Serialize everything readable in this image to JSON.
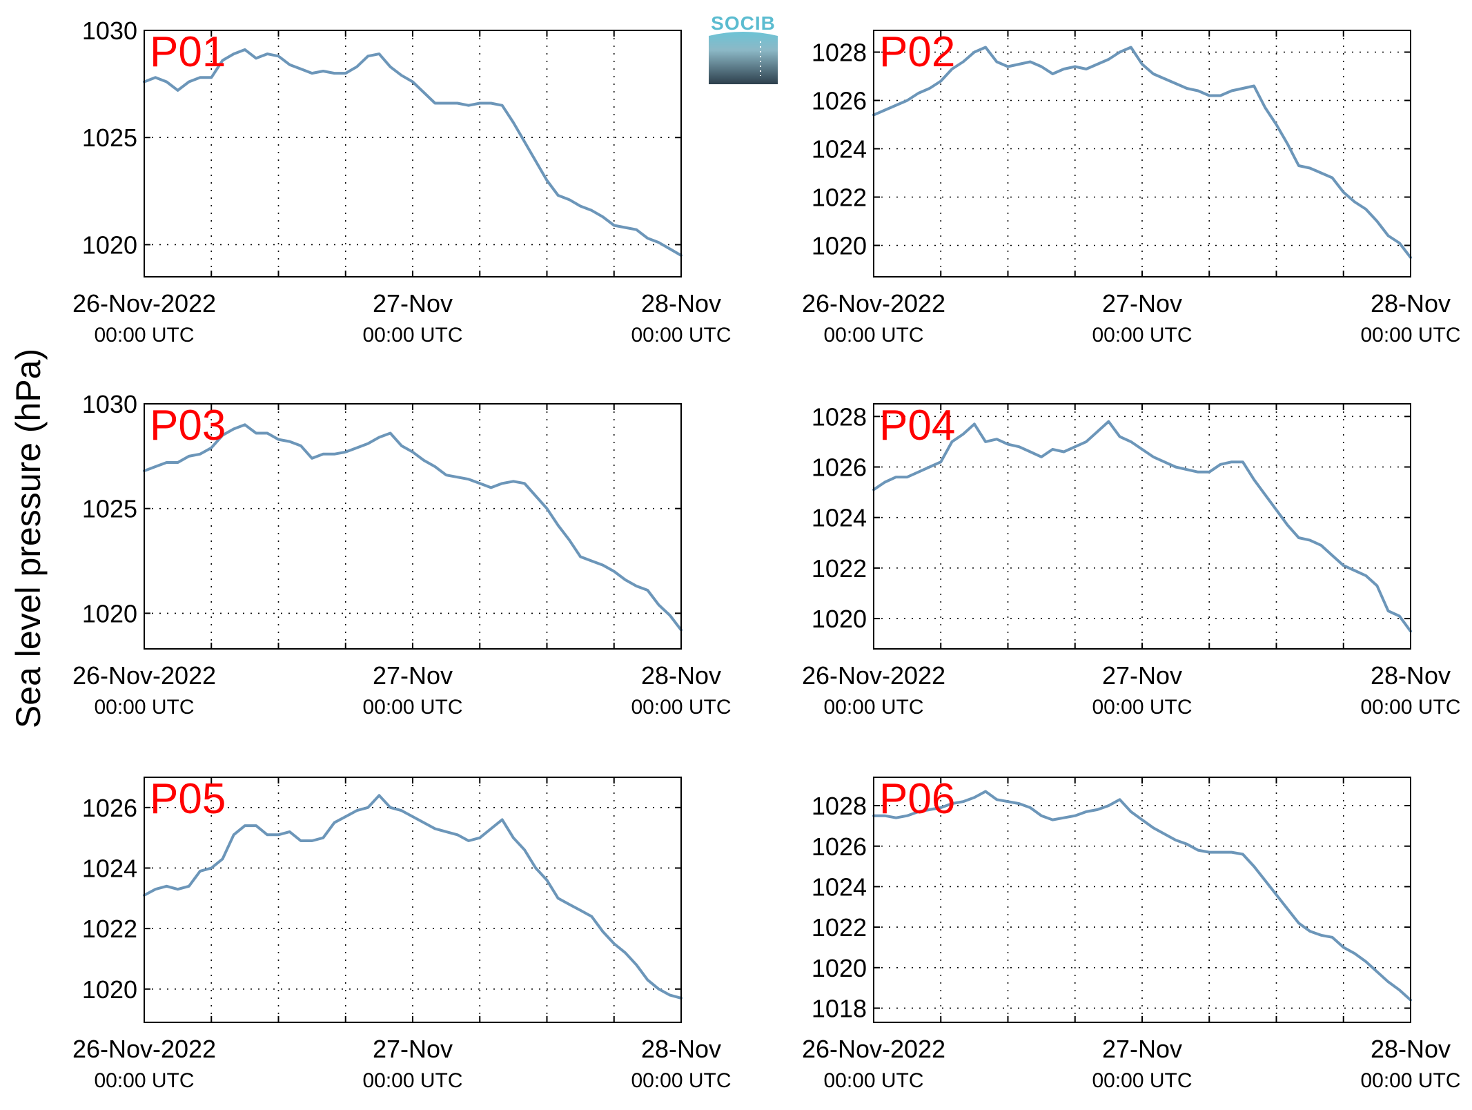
{
  "figure": {
    "ylabel": "Sea level pressure (hPa)",
    "logo_text": "SOCIB",
    "line_color": "#6c96b9",
    "station_label_color": "#ff0000"
  },
  "chart_data": [
    {
      "type": "line",
      "label": "P01",
      "ylim": [
        1018.5,
        1030.0
      ],
      "yticks": [
        1020,
        1025,
        1030
      ],
      "xlim": [
        0,
        48
      ],
      "xticks": [
        0,
        24,
        48
      ],
      "xticklabels": [
        [
          "26-Nov-2022",
          "00:00 UTC"
        ],
        [
          "27-Nov",
          "00:00 UTC"
        ],
        [
          "28-Nov",
          "00:00 UTC"
        ]
      ],
      "grid": true,
      "x": [
        0,
        1,
        2,
        3,
        4,
        5,
        6,
        7,
        8,
        9,
        10,
        11,
        12,
        13,
        14,
        15,
        16,
        17,
        18,
        19,
        20,
        21,
        22,
        23,
        24,
        25,
        26,
        27,
        28,
        29,
        30,
        31,
        32,
        33,
        34,
        35,
        36,
        37,
        38,
        39,
        40,
        41,
        42,
        43,
        44,
        45,
        46,
        47,
        48
      ],
      "y": [
        1027.6,
        1027.8,
        1027.6,
        1027.2,
        1027.6,
        1027.8,
        1027.8,
        1028.6,
        1028.9,
        1029.1,
        1028.7,
        1028.9,
        1028.8,
        1028.4,
        1028.2,
        1028.0,
        1028.1,
        1028.0,
        1028.0,
        1028.3,
        1028.8,
        1028.9,
        1028.3,
        1027.9,
        1027.6,
        1027.1,
        1026.6,
        1026.6,
        1026.6,
        1026.5,
        1026.6,
        1026.6,
        1026.5,
        1025.7,
        1024.8,
        1023.9,
        1023.0,
        1022.3,
        1022.1,
        1021.8,
        1021.6,
        1021.3,
        1020.9,
        1020.8,
        1020.7,
        1020.3,
        1020.1,
        1019.8,
        1019.5
      ]
    },
    {
      "type": "line",
      "label": "P02",
      "ylim": [
        1018.7,
        1028.9
      ],
      "yticks": [
        1020,
        1022,
        1024,
        1026,
        1028
      ],
      "xlim": [
        0,
        48
      ],
      "xticks": [
        0,
        24,
        48
      ],
      "xticklabels": [
        [
          "26-Nov-2022",
          "00:00 UTC"
        ],
        [
          "27-Nov",
          "00:00 UTC"
        ],
        [
          "28-Nov",
          "00:00 UTC"
        ]
      ],
      "grid": true,
      "x": [
        0,
        1,
        2,
        3,
        4,
        5,
        6,
        7,
        8,
        9,
        10,
        11,
        12,
        13,
        14,
        15,
        16,
        17,
        18,
        19,
        20,
        21,
        22,
        23,
        24,
        25,
        26,
        27,
        28,
        29,
        30,
        31,
        32,
        33,
        34,
        35,
        36,
        37,
        38,
        39,
        40,
        41,
        42,
        43,
        44,
        45,
        46,
        47,
        48
      ],
      "y": [
        1025.4,
        1025.6,
        1025.8,
        1026.0,
        1026.3,
        1026.5,
        1026.8,
        1027.3,
        1027.6,
        1028.0,
        1028.2,
        1027.6,
        1027.4,
        1027.5,
        1027.6,
        1027.4,
        1027.1,
        1027.3,
        1027.4,
        1027.3,
        1027.5,
        1027.7,
        1028.0,
        1028.2,
        1027.5,
        1027.1,
        1026.9,
        1026.7,
        1026.5,
        1026.4,
        1026.2,
        1026.2,
        1026.4,
        1026.5,
        1026.6,
        1025.7,
        1025.0,
        1024.2,
        1023.3,
        1023.2,
        1023.0,
        1022.8,
        1022.2,
        1021.8,
        1021.5,
        1021.0,
        1020.4,
        1020.1,
        1019.5
      ]
    },
    {
      "type": "line",
      "label": "P03",
      "ylim": [
        1018.3,
        1030.0
      ],
      "yticks": [
        1020,
        1025,
        1030
      ],
      "xlim": [
        0,
        48
      ],
      "xticks": [
        0,
        24,
        48
      ],
      "xticklabels": [
        [
          "26-Nov-2022",
          "00:00 UTC"
        ],
        [
          "27-Nov",
          "00:00 UTC"
        ],
        [
          "28-Nov",
          "00:00 UTC"
        ]
      ],
      "grid": true,
      "x": [
        0,
        1,
        2,
        3,
        4,
        5,
        6,
        7,
        8,
        9,
        10,
        11,
        12,
        13,
        14,
        15,
        16,
        17,
        18,
        19,
        20,
        21,
        22,
        23,
        24,
        25,
        26,
        27,
        28,
        29,
        30,
        31,
        32,
        33,
        34,
        35,
        36,
        37,
        38,
        39,
        40,
        41,
        42,
        43,
        44,
        45,
        46,
        47,
        48
      ],
      "y": [
        1026.8,
        1027.0,
        1027.2,
        1027.2,
        1027.5,
        1027.6,
        1027.9,
        1028.5,
        1028.8,
        1029.0,
        1028.6,
        1028.6,
        1028.3,
        1028.2,
        1028.0,
        1027.4,
        1027.6,
        1027.6,
        1027.7,
        1027.9,
        1028.1,
        1028.4,
        1028.6,
        1028.0,
        1027.7,
        1027.3,
        1027.0,
        1026.6,
        1026.5,
        1026.4,
        1026.2,
        1026.0,
        1026.2,
        1026.3,
        1026.2,
        1025.6,
        1025.0,
        1024.2,
        1023.5,
        1022.7,
        1022.5,
        1022.3,
        1022.0,
        1021.6,
        1021.3,
        1021.1,
        1020.4,
        1019.9,
        1019.2
      ]
    },
    {
      "type": "line",
      "label": "P04",
      "ylim": [
        1018.8,
        1028.5
      ],
      "yticks": [
        1020,
        1022,
        1024,
        1026,
        1028
      ],
      "xlim": [
        0,
        48
      ],
      "xticks": [
        0,
        24,
        48
      ],
      "xticklabels": [
        [
          "26-Nov-2022",
          "00:00 UTC"
        ],
        [
          "27-Nov",
          "00:00 UTC"
        ],
        [
          "28-Nov",
          "00:00 UTC"
        ]
      ],
      "grid": true,
      "x": [
        0,
        1,
        2,
        3,
        4,
        5,
        6,
        7,
        8,
        9,
        10,
        11,
        12,
        13,
        14,
        15,
        16,
        17,
        18,
        19,
        20,
        21,
        22,
        23,
        24,
        25,
        26,
        27,
        28,
        29,
        30,
        31,
        32,
        33,
        34,
        35,
        36,
        37,
        38,
        39,
        40,
        41,
        42,
        43,
        44,
        45,
        46,
        47,
        48
      ],
      "y": [
        1025.1,
        1025.4,
        1025.6,
        1025.6,
        1025.8,
        1026.0,
        1026.2,
        1027.0,
        1027.3,
        1027.7,
        1027.0,
        1027.1,
        1026.9,
        1026.8,
        1026.6,
        1026.4,
        1026.7,
        1026.6,
        1026.8,
        1027.0,
        1027.4,
        1027.8,
        1027.2,
        1027.0,
        1026.7,
        1026.4,
        1026.2,
        1026.0,
        1025.9,
        1025.8,
        1025.8,
        1026.1,
        1026.2,
        1026.2,
        1025.5,
        1024.9,
        1024.3,
        1023.7,
        1023.2,
        1023.1,
        1022.9,
        1022.5,
        1022.1,
        1021.9,
        1021.7,
        1021.3,
        1020.3,
        1020.1,
        1019.5
      ]
    },
    {
      "type": "line",
      "label": "P05",
      "ylim": [
        1018.9,
        1027.0
      ],
      "yticks": [
        1020,
        1022,
        1024,
        1026
      ],
      "xlim": [
        0,
        48
      ],
      "xticks": [
        0,
        24,
        48
      ],
      "xticklabels": [
        [
          "26-Nov-2022",
          "00:00 UTC"
        ],
        [
          "27-Nov",
          "00:00 UTC"
        ],
        [
          "28-Nov",
          "00:00 UTC"
        ]
      ],
      "grid": true,
      "x": [
        0,
        1,
        2,
        3,
        4,
        5,
        6,
        7,
        8,
        9,
        10,
        11,
        12,
        13,
        14,
        15,
        16,
        17,
        18,
        19,
        20,
        21,
        22,
        23,
        24,
        25,
        26,
        27,
        28,
        29,
        30,
        31,
        32,
        33,
        34,
        35,
        36,
        37,
        38,
        39,
        40,
        41,
        42,
        43,
        44,
        45,
        46,
        47,
        48
      ],
      "y": [
        1023.1,
        1023.3,
        1023.4,
        1023.3,
        1023.4,
        1023.9,
        1024.0,
        1024.3,
        1025.1,
        1025.4,
        1025.4,
        1025.1,
        1025.1,
        1025.2,
        1024.9,
        1024.9,
        1025.0,
        1025.5,
        1025.7,
        1025.9,
        1026.0,
        1026.4,
        1026.0,
        1025.9,
        1025.7,
        1025.5,
        1025.3,
        1025.2,
        1025.1,
        1024.9,
        1025.0,
        1025.3,
        1025.6,
        1025.0,
        1024.6,
        1024.0,
        1023.6,
        1023.0,
        1022.8,
        1022.6,
        1022.4,
        1021.9,
        1021.5,
        1021.2,
        1020.8,
        1020.3,
        1020.0,
        1019.8,
        1019.7
      ]
    },
    {
      "type": "line",
      "label": "P06",
      "ylim": [
        1017.3,
        1029.4
      ],
      "yticks": [
        1018,
        1020,
        1022,
        1024,
        1026,
        1028
      ],
      "xlim": [
        0,
        48
      ],
      "xticks": [
        0,
        24,
        48
      ],
      "xticklabels": [
        [
          "26-Nov-2022",
          "00:00 UTC"
        ],
        [
          "27-Nov",
          "00:00 UTC"
        ],
        [
          "28-Nov",
          "00:00 UTC"
        ]
      ],
      "grid": true,
      "x": [
        0,
        1,
        2,
        3,
        4,
        5,
        6,
        7,
        8,
        9,
        10,
        11,
        12,
        13,
        14,
        15,
        16,
        17,
        18,
        19,
        20,
        21,
        22,
        23,
        24,
        25,
        26,
        27,
        28,
        29,
        30,
        31,
        32,
        33,
        34,
        35,
        36,
        37,
        38,
        39,
        40,
        41,
        42,
        43,
        44,
        45,
        46,
        47,
        48
      ],
      "y": [
        1027.5,
        1027.5,
        1027.4,
        1027.5,
        1027.7,
        1027.8,
        1027.9,
        1028.1,
        1028.2,
        1028.4,
        1028.7,
        1028.3,
        1028.2,
        1028.1,
        1027.9,
        1027.5,
        1027.3,
        1027.4,
        1027.5,
        1027.7,
        1027.8,
        1028.0,
        1028.3,
        1027.7,
        1027.3,
        1026.9,
        1026.6,
        1026.3,
        1026.1,
        1025.8,
        1025.7,
        1025.7,
        1025.7,
        1025.6,
        1025.0,
        1024.3,
        1023.6,
        1022.9,
        1022.2,
        1021.8,
        1021.6,
        1021.5,
        1021.0,
        1020.7,
        1020.3,
        1019.8,
        1019.3,
        1018.9,
        1018.4
      ]
    }
  ]
}
